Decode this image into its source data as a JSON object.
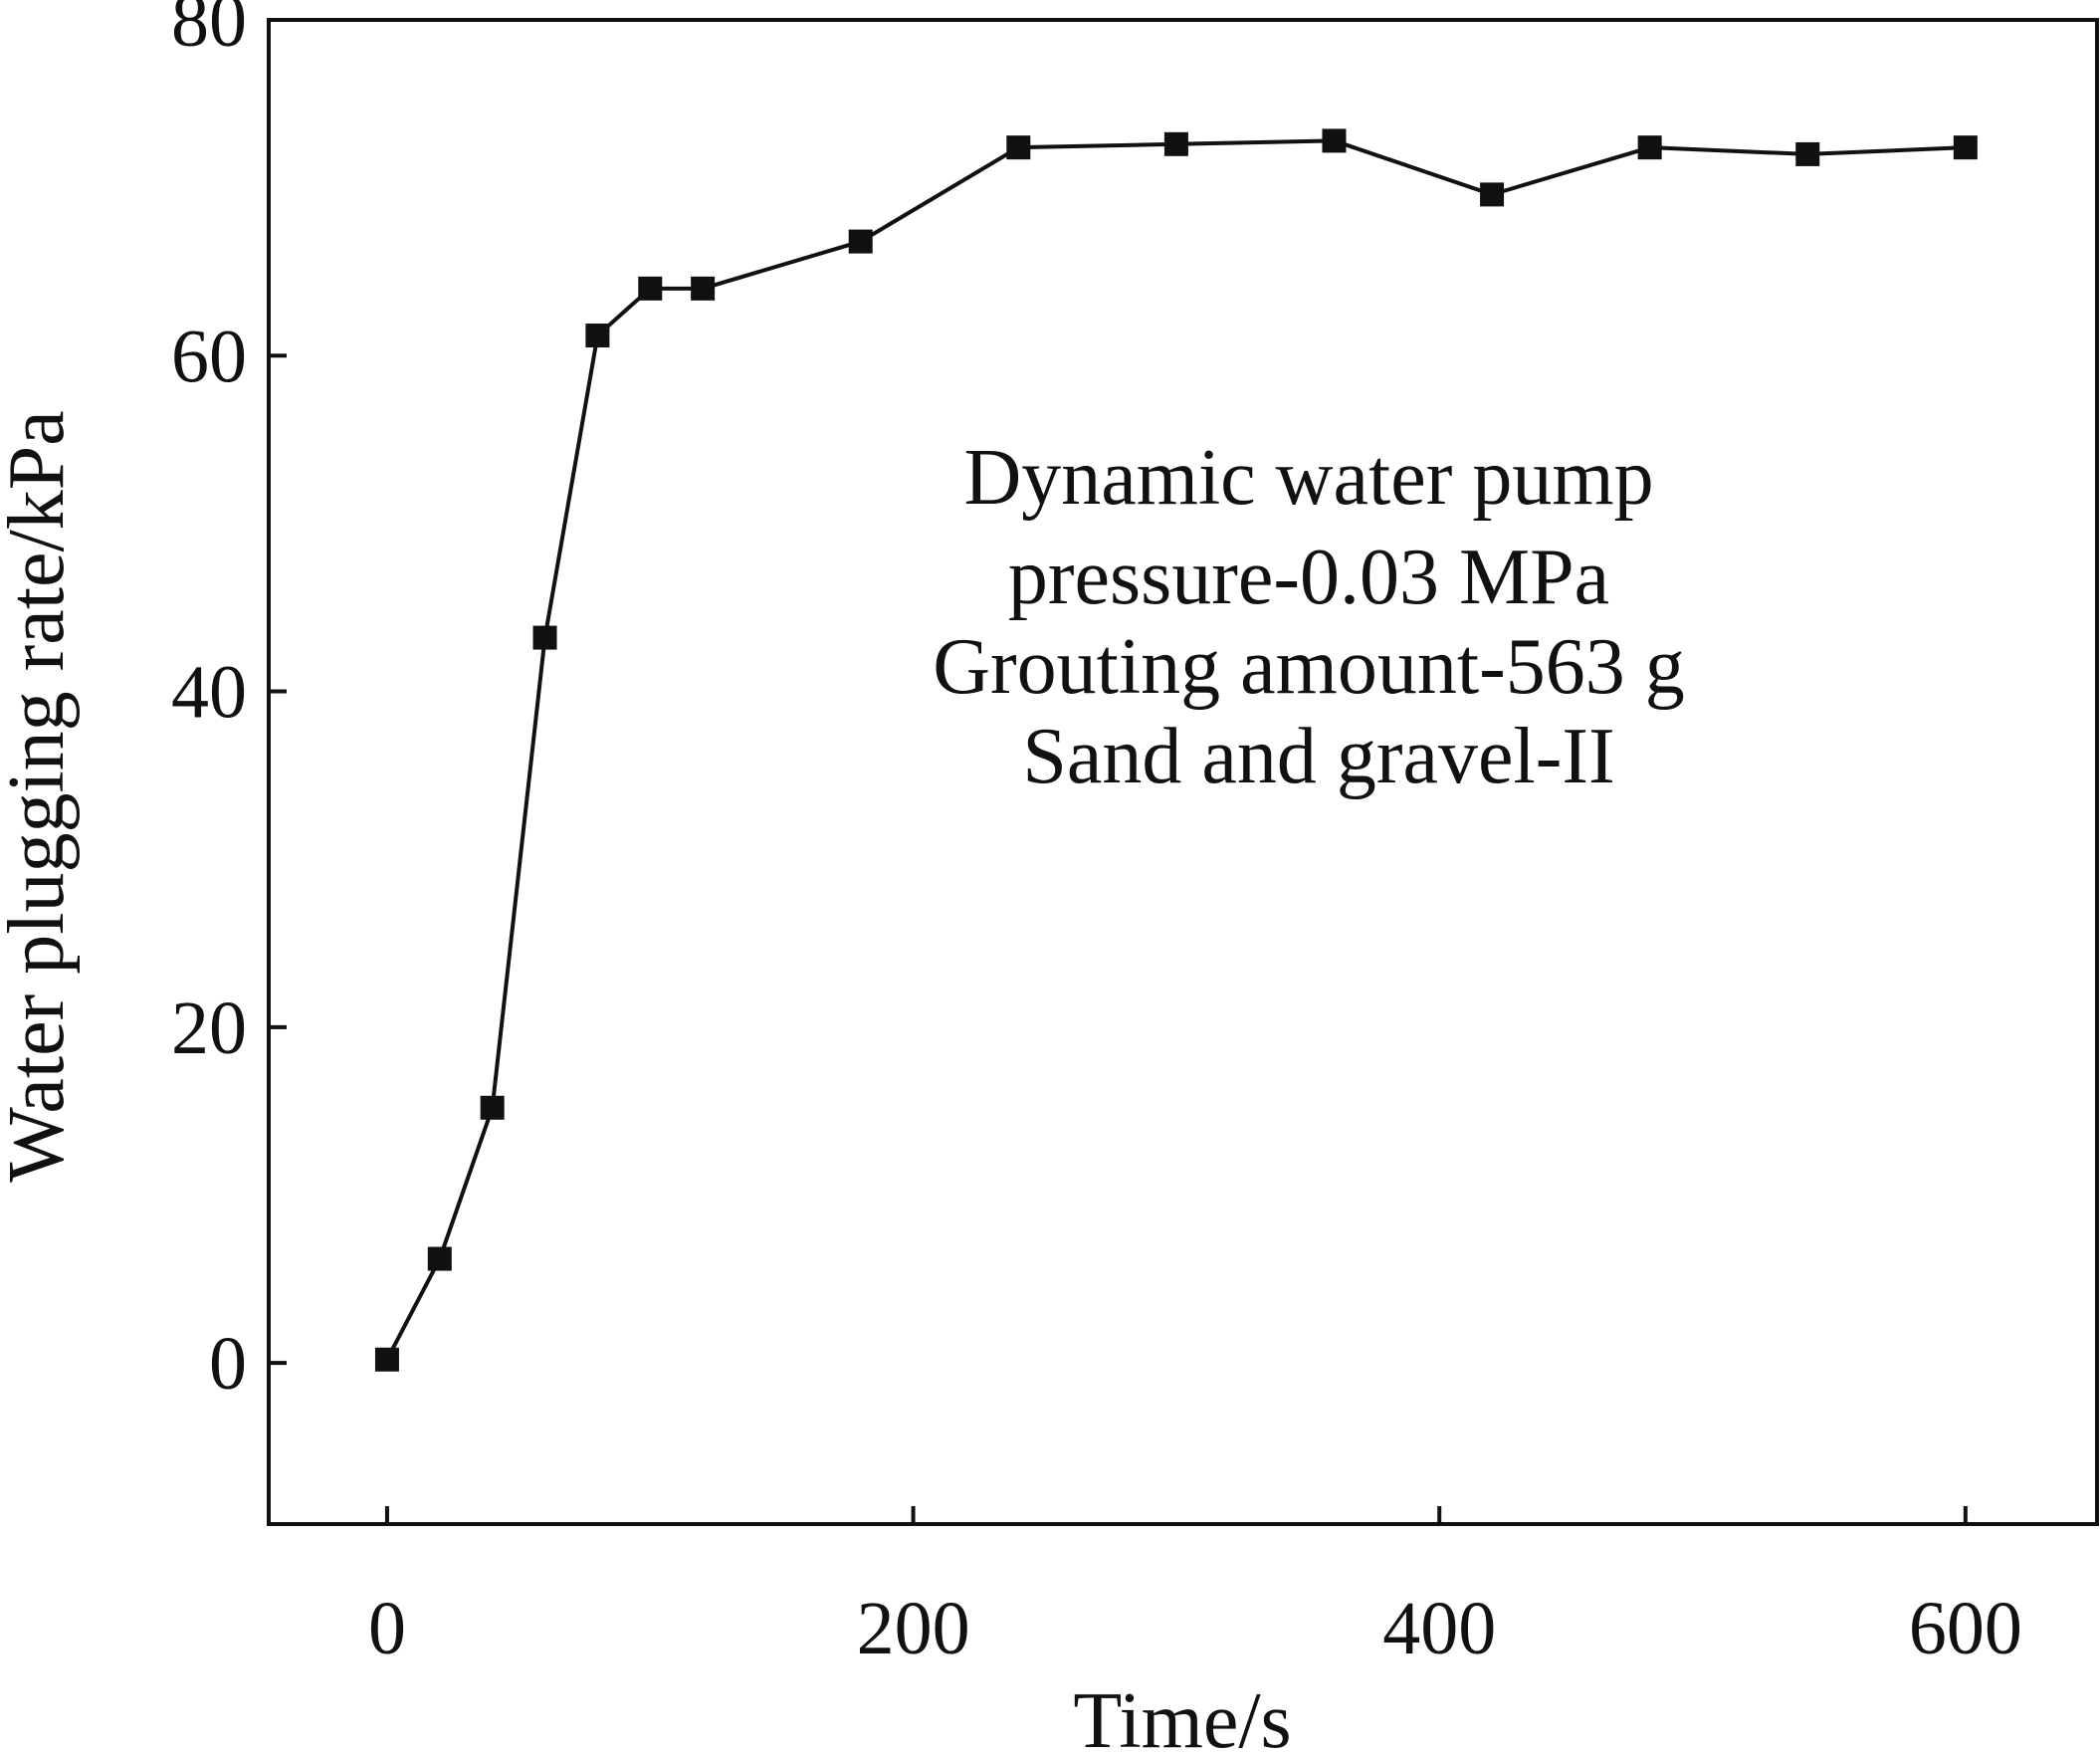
{
  "chart_data": {
    "type": "line",
    "title": "",
    "xlabel": "Time/s",
    "ylabel": "Water plugging rate/kPa",
    "xlim": [
      -45,
      650
    ],
    "ylim": [
      -9.6,
      80
    ],
    "xticks": [
      0,
      200,
      400,
      600
    ],
    "yticks": [
      0,
      20,
      40,
      60,
      80
    ],
    "grid": false,
    "legend": "none",
    "series": [
      {
        "marker": "filled-square",
        "color": "#111111",
        "points": [
          {
            "x": 0,
            "y": 0.2
          },
          {
            "x": 20,
            "y": 6.2
          },
          {
            "x": 40,
            "y": 15.2
          },
          {
            "x": 60,
            "y": 43.2
          },
          {
            "x": 80,
            "y": 61.2
          },
          {
            "x": 100,
            "y": 64.0
          },
          {
            "x": 120,
            "y": 64.0
          },
          {
            "x": 180,
            "y": 66.8
          },
          {
            "x": 240,
            "y": 72.4
          },
          {
            "x": 300,
            "y": 72.6
          },
          {
            "x": 360,
            "y": 72.8
          },
          {
            "x": 420,
            "y": 69.6
          },
          {
            "x": 480,
            "y": 72.4
          },
          {
            "x": 540,
            "y": 72.0
          },
          {
            "x": 600,
            "y": 72.4
          }
        ]
      }
    ],
    "annotation": [
      "Dynamic water pump",
      "pressure-0.03 MPa",
      "Grouting amount-563 g",
      "Sand and gravel-II"
    ]
  }
}
